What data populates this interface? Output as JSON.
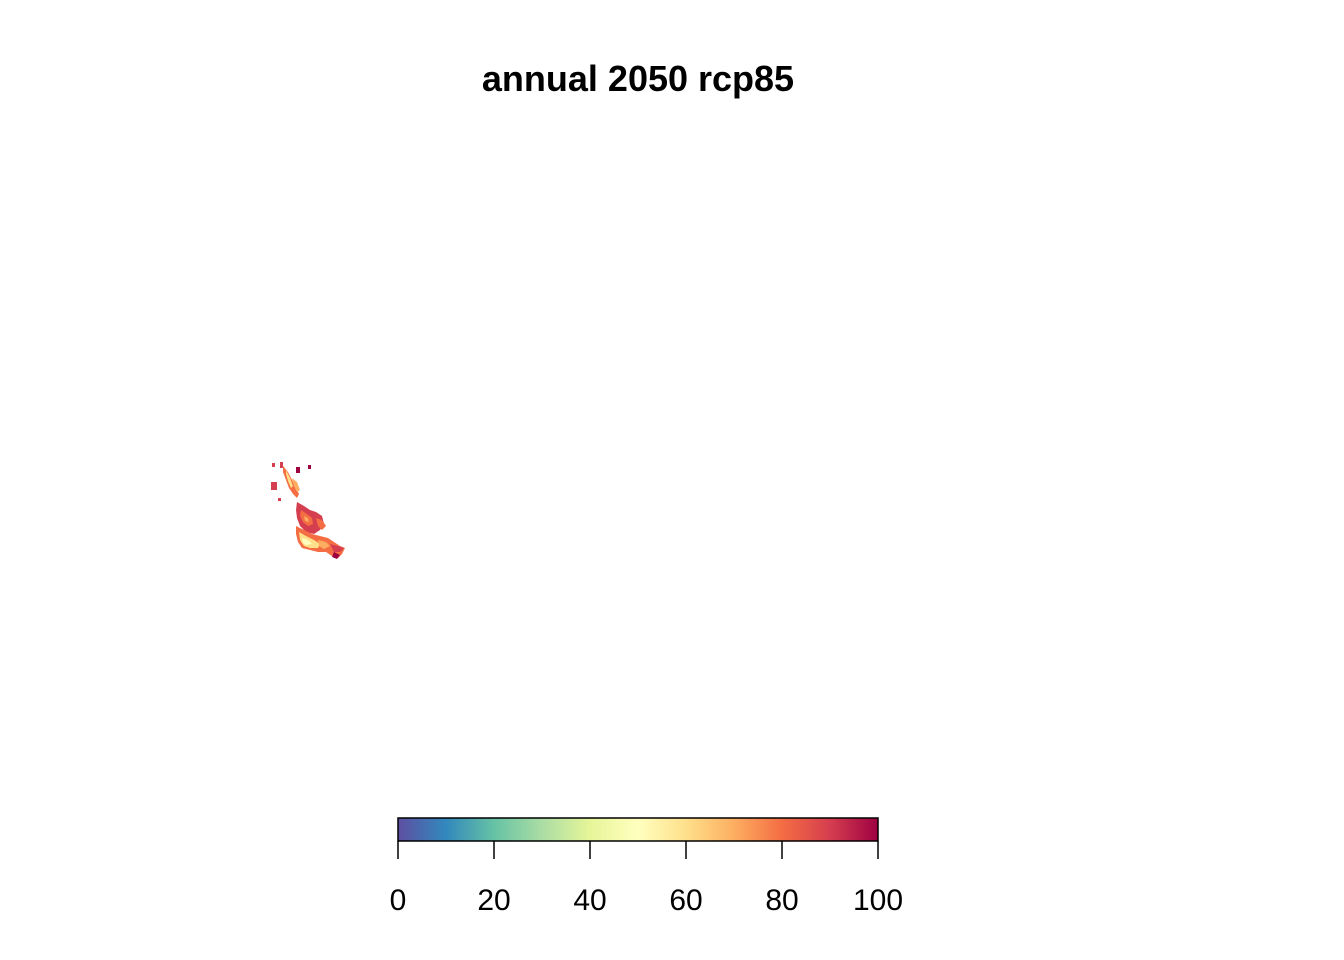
{
  "title": "annual 2050 rcp85",
  "legend": {
    "min": 0,
    "max": 100,
    "tick_values": [
      0,
      20,
      40,
      60,
      80,
      100
    ],
    "tick_labels": [
      "0",
      "20",
      "40",
      "60",
      "80",
      "100"
    ],
    "palette": [
      "#5E4FA2",
      "#3288BD",
      "#66C2A5",
      "#ABDDA4",
      "#E6F598",
      "#FFFFBF",
      "#FEE08B",
      "#FDAE61",
      "#F46D43",
      "#D53E4F",
      "#9E0142"
    ]
  },
  "map": {
    "colors": {
      "high": "#D53E4F",
      "mid_high": "#F46D43",
      "mid": "#FDAE61",
      "low": "#FEE08B",
      "max": "#9E0142"
    }
  }
}
